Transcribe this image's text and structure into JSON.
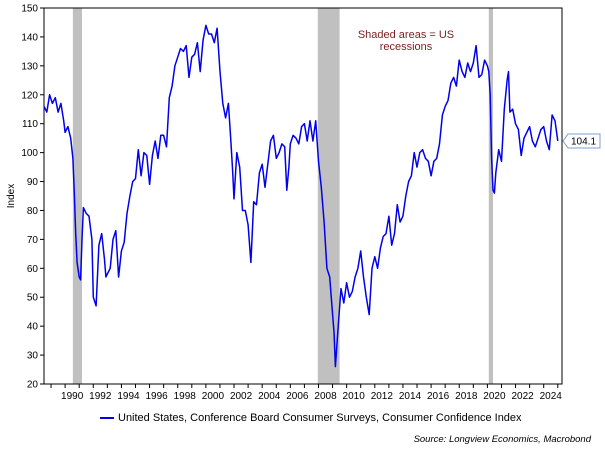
{
  "chart_data": {
    "type": "line",
    "ylabel": "Index",
    "ylim": [
      20,
      150
    ],
    "xlim": [
      1988.5,
      2025.3
    ],
    "yticks": [
      20,
      30,
      40,
      50,
      60,
      70,
      80,
      90,
      100,
      110,
      120,
      130,
      140,
      150
    ],
    "xticks": [
      "1990",
      "1992",
      "1994",
      "1996",
      "1998",
      "2000",
      "2002",
      "2004",
      "2006",
      "2008",
      "2010",
      "2012",
      "2014",
      "2016",
      "2018",
      "2020",
      "2022",
      "2024"
    ],
    "recessions": [
      [
        1990.55,
        1991.2
      ],
      [
        2007.95,
        2009.5
      ],
      [
        2020.1,
        2020.4
      ]
    ],
    "annotation": [
      "Shaded areas = US",
      "recessions"
    ],
    "last_value_label": "104.1",
    "line_color": "#0000ee",
    "recession_color": "#c0c0c0",
    "series": [
      {
        "name": "United States, Conference Board Consumer Surveys, Consumer Confidence Index",
        "x": [
          1988.5,
          1988.7,
          1988.9,
          1989.1,
          1989.3,
          1989.5,
          1989.7,
          1989.9,
          1990.0,
          1990.2,
          1990.4,
          1990.55,
          1990.65,
          1990.75,
          1990.85,
          1991.0,
          1991.1,
          1991.2,
          1991.3,
          1991.5,
          1991.7,
          1991.9,
          1992.0,
          1992.2,
          1992.4,
          1992.6,
          1992.8,
          1992.9,
          1993.0,
          1993.2,
          1993.4,
          1993.6,
          1993.8,
          1994.0,
          1994.2,
          1994.4,
          1994.6,
          1994.8,
          1995.0,
          1995.2,
          1995.4,
          1995.6,
          1995.8,
          1996.0,
          1996.2,
          1996.4,
          1996.6,
          1996.8,
          1997.0,
          1997.2,
          1997.4,
          1997.6,
          1997.8,
          1998.0,
          1998.2,
          1998.4,
          1998.6,
          1998.8,
          1999.0,
          1999.2,
          1999.4,
          1999.6,
          1999.8,
          2000.0,
          2000.2,
          2000.4,
          2000.6,
          2000.8,
          2001.0,
          2001.2,
          2001.4,
          2001.6,
          2001.75,
          2001.9,
          2002.0,
          2002.2,
          2002.4,
          2002.6,
          2002.8,
          2003.0,
          2003.2,
          2003.4,
          2003.6,
          2003.8,
          2004.0,
          2004.2,
          2004.4,
          2004.6,
          2004.8,
          2005.0,
          2005.2,
          2005.4,
          2005.6,
          2005.75,
          2005.9,
          2006.0,
          2006.2,
          2006.4,
          2006.6,
          2006.8,
          2007.0,
          2007.2,
          2007.4,
          2007.6,
          2007.8,
          2008.0,
          2008.2,
          2008.4,
          2008.6,
          2008.8,
          2009.0,
          2009.1,
          2009.2,
          2009.4,
          2009.6,
          2009.8,
          2010.0,
          2010.2,
          2010.4,
          2010.6,
          2010.8,
          2011.0,
          2011.2,
          2011.4,
          2011.6,
          2011.8,
          2012.0,
          2012.2,
          2012.4,
          2012.6,
          2012.8,
          2013.0,
          2013.2,
          2013.4,
          2013.6,
          2013.8,
          2014.0,
          2014.2,
          2014.4,
          2014.6,
          2014.8,
          2015.0,
          2015.2,
          2015.4,
          2015.6,
          2015.8,
          2016.0,
          2016.2,
          2016.4,
          2016.6,
          2016.8,
          2017.0,
          2017.2,
          2017.4,
          2017.6,
          2017.8,
          2018.0,
          2018.2,
          2018.4,
          2018.6,
          2018.8,
          2019.0,
          2019.2,
          2019.4,
          2019.6,
          2019.8,
          2020.0,
          2020.1,
          2020.2,
          2020.3,
          2020.4,
          2020.5,
          2020.6,
          2020.8,
          2021.0,
          2021.2,
          2021.4,
          2021.5,
          2021.6,
          2021.8,
          2022.0,
          2022.2,
          2022.4,
          2022.6,
          2022.8,
          2023.0,
          2023.2,
          2023.4,
          2023.6,
          2023.8,
          2024.0,
          2024.2,
          2024.4,
          2024.6,
          2024.8,
          2025.0
        ],
        "values": [
          116,
          114,
          120,
          117,
          119,
          114,
          117,
          111,
          107,
          109,
          105,
          98,
          86,
          72,
          62,
          57,
          56,
          70,
          81,
          79,
          78,
          70,
          50,
          47,
          68,
          72,
          63,
          57,
          58,
          60,
          70,
          73,
          57,
          66,
          69,
          79,
          85,
          90,
          91,
          101,
          92,
          100,
          99,
          89,
          99,
          104,
          98,
          106,
          106,
          102,
          119,
          123,
          130,
          133,
          136,
          135,
          137,
          126,
          133,
          134,
          138,
          128,
          139,
          144,
          141,
          141,
          138,
          143,
          128,
          117,
          112,
          117,
          106,
          94,
          84,
          100,
          95,
          80,
          80,
          75,
          62,
          83,
          82,
          93,
          96,
          88,
          96,
          104,
          106,
          98,
          100,
          103,
          102,
          87,
          95,
          103,
          106,
          105,
          103,
          109,
          110,
          104,
          111,
          104,
          111,
          97,
          88,
          76,
          60,
          57,
          44,
          38,
          26,
          40,
          53,
          48,
          55,
          50,
          52,
          57,
          60,
          66,
          57,
          50,
          44,
          60,
          64,
          60,
          67,
          71,
          72,
          78,
          68,
          72,
          82,
          76,
          78,
          85,
          90,
          92,
          100,
          95,
          100,
          101,
          98,
          97,
          92,
          97,
          98,
          103,
          113,
          116,
          118,
          124,
          126,
          123,
          132,
          128,
          126,
          131,
          128,
          131,
          137,
          126,
          127,
          132,
          130,
          128,
          120,
          98,
          87,
          86,
          93,
          101,
          97,
          115,
          125,
          128,
          114,
          115,
          110,
          108,
          99,
          105,
          107,
          109,
          104,
          102,
          105,
          108,
          109,
          104,
          101,
          113,
          111,
          104
        ]
      }
    ],
    "legend_placement": "bottom",
    "source": "Source: Longview Economics, Macrobond"
  }
}
